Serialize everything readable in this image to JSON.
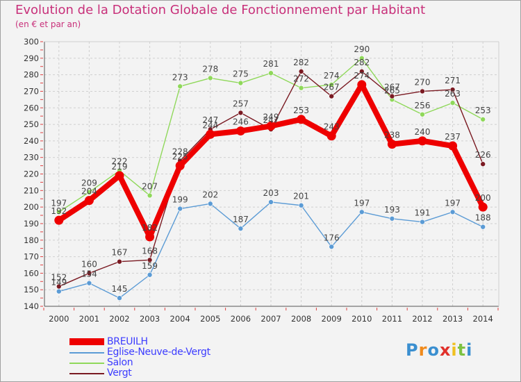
{
  "title": "Evolution de la Dotation Globale de Fonctionnement par Habitant",
  "subtitle": "(en € et par an)",
  "logo": {
    "letters": [
      "P",
      "r",
      "o",
      "x",
      "i",
      "t",
      "i"
    ],
    "colors": [
      "#3a8fd0",
      "#f08a1c",
      "#3a8fd0",
      "#e0302a",
      "#f0c020",
      "#7dc242",
      "#3a8fd0"
    ]
  },
  "chart_data": {
    "type": "line",
    "x": [
      "2000",
      "2001",
      "2002",
      "2003",
      "2004",
      "2005",
      "2006",
      "2007",
      "2008",
      "2009",
      "2010",
      "2011",
      "2012",
      "2013",
      "2014"
    ],
    "ylim": [
      140,
      300
    ],
    "yticks": [
      "140",
      "150",
      "160",
      "170",
      "180",
      "190",
      "200",
      "210",
      "220",
      "230",
      "240",
      "250",
      "260",
      "270",
      "280",
      "290",
      "300"
    ],
    "grid": true,
    "legend_position": "bottom-left",
    "series": [
      {
        "name": "BREUILH",
        "color": "#ee0000",
        "values": [
          192,
          204,
          219,
          182,
          225,
          244,
          246,
          249,
          253,
          243,
          274,
          238,
          240,
          237,
          200
        ]
      },
      {
        "name": "Eglise-Neuve-de-Vergt",
        "color": "#5b9bd5",
        "values": [
          149,
          154,
          145,
          159,
          199,
          202,
          187,
          203,
          201,
          176,
          197,
          193,
          191,
          197,
          188
        ]
      },
      {
        "name": "Salon",
        "color": "#8fd85a",
        "values": [
          197,
          209,
          222,
          207,
          273,
          278,
          275,
          281,
          272,
          274,
          290,
          265,
          256,
          263,
          253
        ]
      },
      {
        "name": "Vergt",
        "color": "#7a1a22",
        "values": [
          152,
          160,
          167,
          168,
          228,
          247,
          257,
          247,
          282,
          267,
          282,
          267,
          270,
          271,
          226
        ]
      }
    ]
  }
}
